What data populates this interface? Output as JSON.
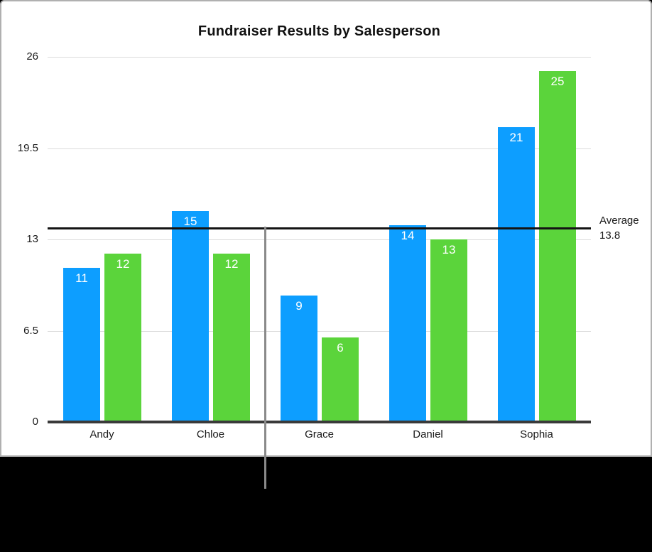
{
  "chart_data": {
    "type": "bar",
    "title": "Fundraiser Results by Salesperson",
    "categories": [
      "Andy",
      "Chloe",
      "Grace",
      "Daniel",
      "Sophia"
    ],
    "series": [
      {
        "name": "blue-series",
        "color": "#0d9eff",
        "values": [
          11,
          15,
          9,
          14,
          21
        ]
      },
      {
        "name": "green-series",
        "color": "#5bd43b",
        "values": [
          12,
          12,
          6,
          13,
          25
        ]
      }
    ],
    "ylim": [
      0,
      26
    ],
    "y_ticks": [
      0,
      6.5,
      13,
      19.5,
      26
    ],
    "y_tick_labels": [
      "0",
      "6.5",
      "13",
      "19.5",
      "26"
    ],
    "grid": true,
    "legend": "none",
    "value_labels": "inside-top, white",
    "average_line": {
      "value": 13.8,
      "label_title": "Average",
      "value_label": "13.8",
      "color": "#141414"
    }
  },
  "colors": {
    "bar_blue": "#0d9eff",
    "bar_green": "#5bd43b",
    "gridline": "#dcdcdc",
    "axis": "#3a3a3a",
    "card_border": "#b0b0b0",
    "callout_line": "#8a8a8a",
    "caption_background": "#000000"
  }
}
